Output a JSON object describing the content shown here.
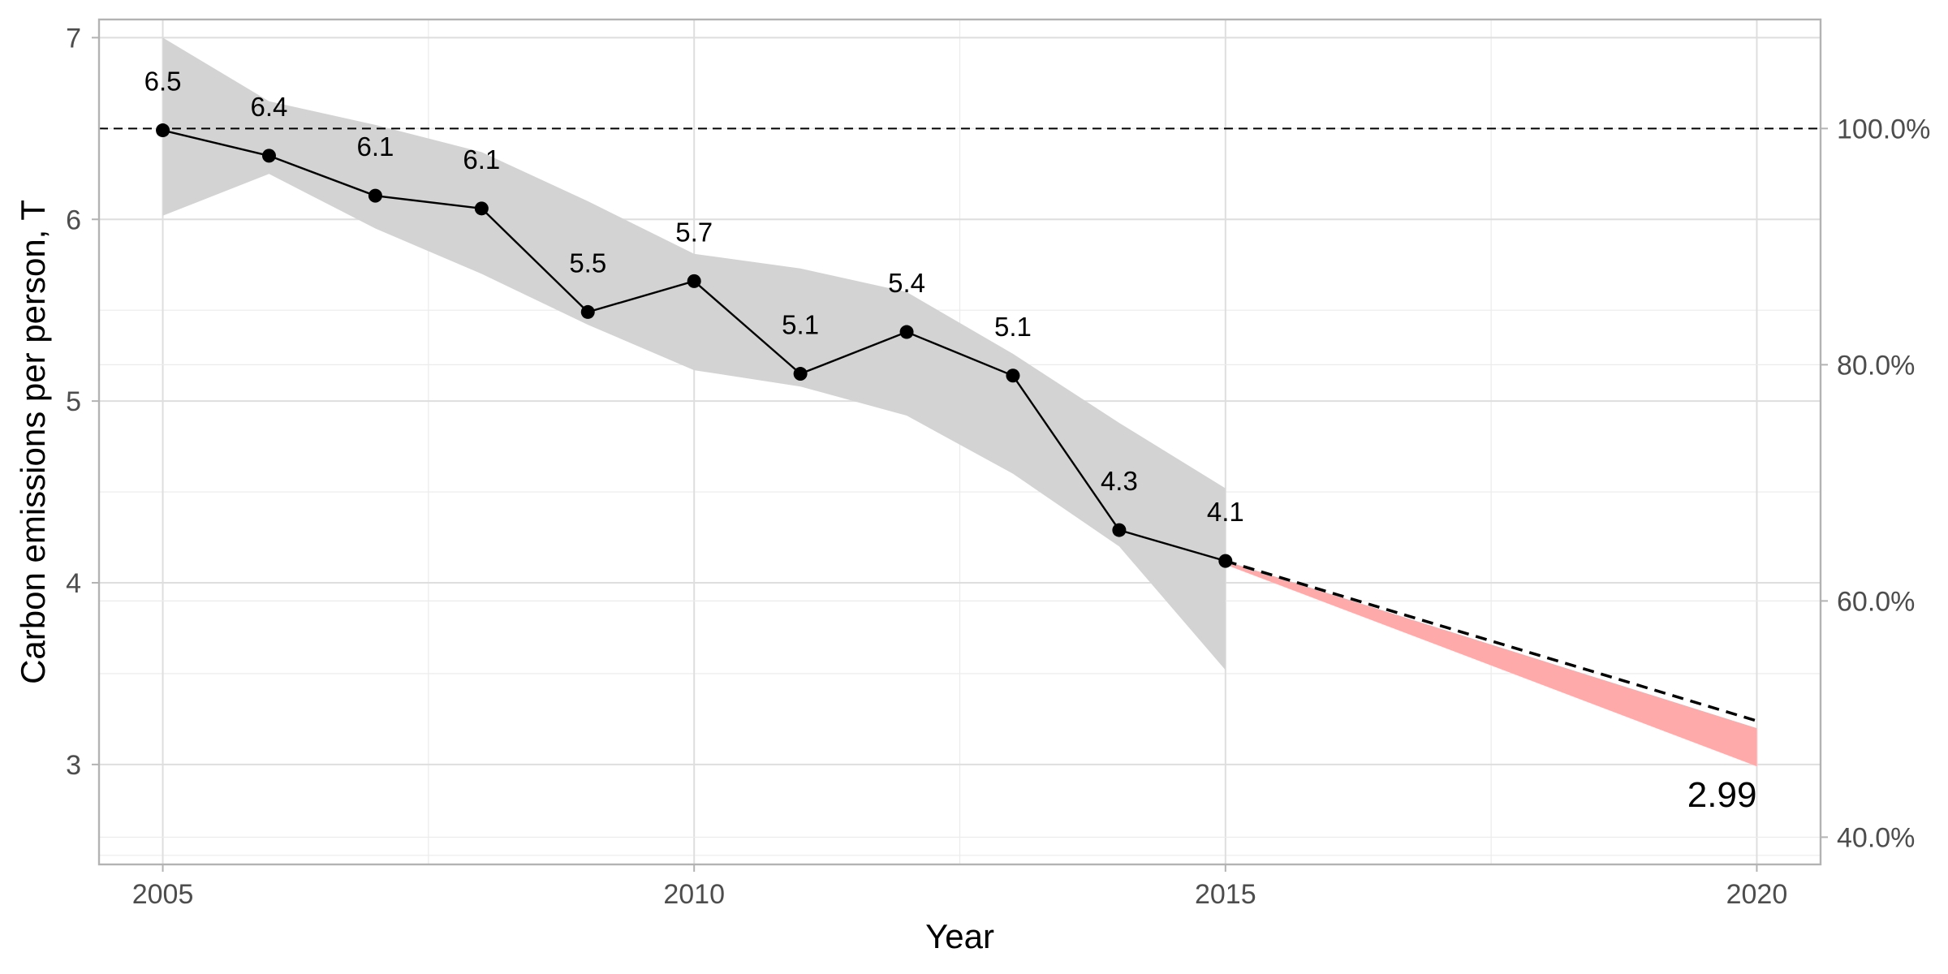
{
  "chart_data": {
    "type": "line",
    "xlabel": "Year",
    "ylabel": "Carbon emissions per person, T",
    "xlim": [
      2004.4,
      2020.6
    ],
    "ylim": [
      2.45,
      7.1
    ],
    "x_ticks": [
      2005,
      2010,
      2015,
      2020
    ],
    "x_minor_ticks": [
      2007.5,
      2012.5,
      2017.5
    ],
    "y_ticks": [
      3,
      4,
      5,
      6,
      7
    ],
    "y_minor_ticks": [
      2.5,
      3.5,
      4.5,
      5.5,
      6.5
    ],
    "secondary_y_axis": {
      "position": "right",
      "ticks": [
        {
          "value": 0.4,
          "label": "40.0%"
        },
        {
          "value": 0.6,
          "label": "60.0%"
        },
        {
          "value": 0.8,
          "label": "80.0%"
        },
        {
          "value": 1.0,
          "label": "100.0%"
        }
      ],
      "reference_value": 6.5
    },
    "grid": true,
    "series": [
      {
        "type": "line",
        "x": [
          2005,
          2006,
          2007,
          2008,
          2009,
          2010,
          2011,
          2012,
          2013,
          2014,
          2015
        ],
        "values": [
          6.49,
          6.35,
          6.13,
          6.06,
          5.49,
          5.66,
          5.15,
          5.38,
          5.14,
          4.29,
          4.12
        ],
        "labels": [
          "6.5",
          "6.4",
          "6.1",
          "6.1",
          "5.5",
          "5.7",
          "5.1",
          "5.4",
          "5.1",
          "4.3",
          "4.1"
        ],
        "color": "#000000"
      }
    ],
    "confidence_band": {
      "x": [
        2005,
        2006,
        2007,
        2008,
        2009,
        2010,
        2011,
        2012,
        2013,
        2014,
        2015
      ],
      "upper": [
        7.0,
        6.65,
        6.52,
        6.37,
        6.1,
        5.81,
        5.73,
        5.6,
        5.26,
        4.88,
        4.52
      ],
      "lower": [
        6.02,
        6.25,
        5.95,
        5.7,
        5.42,
        5.17,
        5.08,
        4.92,
        4.6,
        4.2,
        3.52
      ],
      "color": "#d3d3d3"
    },
    "projection": {
      "x": [
        2015,
        2020
      ],
      "line_values": [
        4.12,
        3.24
      ],
      "band_upper": [
        4.12,
        3.2
      ],
      "band_lower": [
        4.1,
        2.99
      ],
      "line_color": "#000000",
      "band_color": "#ffaaaa",
      "end_label": "2.99"
    },
    "reference_line": {
      "value": 6.5,
      "style": "dashed",
      "color": "#000000"
    }
  }
}
